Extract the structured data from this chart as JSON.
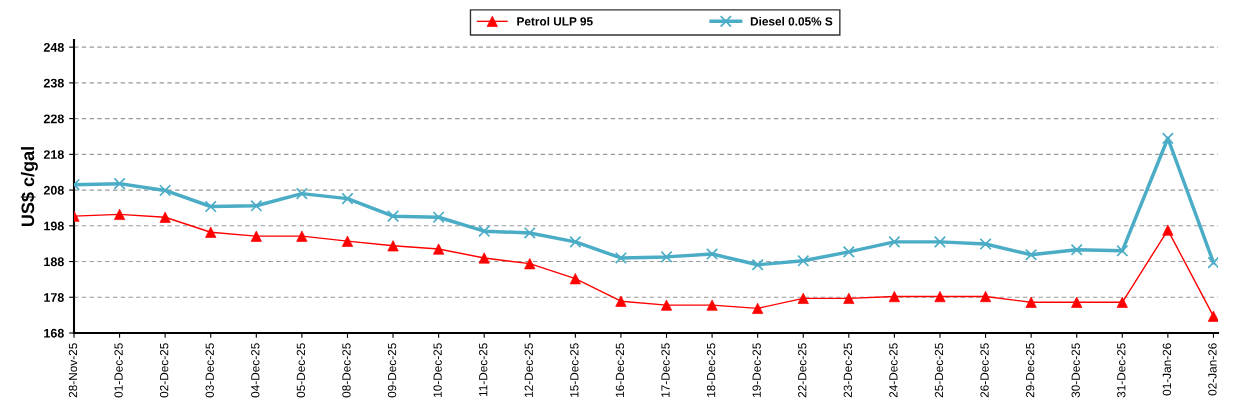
{
  "chart_data": {
    "type": "line",
    "ylabel": "US$ c/gal",
    "categories": [
      "28-Nov-25",
      "01-Dec-25",
      "02-Dec-25",
      "03-Dec-25",
      "04-Dec-25",
      "05-Dec-25",
      "08-Dec-25",
      "09-Dec-25",
      "10-Dec-25",
      "11-Dec-25",
      "12-Dec-25",
      "15-Dec-25",
      "16-Dec-25",
      "17-Dec-25",
      "18-Dec-25",
      "19-Dec-25",
      "22-Dec-25",
      "23-Dec-25",
      "24-Dec-25",
      "25-Dec-25",
      "26-Dec-25",
      "29-Dec-25",
      "30-Dec-25",
      "31-Dec-25",
      "01-Jan-26",
      "02-Jan-26"
    ],
    "series": [
      {
        "name": "Petrol ULP 95",
        "color": "#ff0000",
        "marker": "triangle",
        "values": [
          200.7,
          201.2,
          200.4,
          196.2,
          195.1,
          195.1,
          193.7,
          192.4,
          191.5,
          189.0,
          187.4,
          183.2,
          176.9,
          175.8,
          175.8,
          174.9,
          177.7,
          177.7,
          178.2,
          178.2,
          178.2,
          176.6,
          176.6,
          176.6,
          196.8,
          172.7
        ]
      },
      {
        "name": "Diesel 0.05% S",
        "color": "#4bacc6",
        "marker": "cross",
        "values": [
          209.5,
          209.8,
          207.9,
          203.4,
          203.6,
          207.0,
          205.6,
          200.7,
          200.4,
          196.5,
          196.0,
          193.5,
          189.0,
          189.3,
          190.1,
          187.1,
          188.2,
          190.7,
          193.5,
          193.5,
          192.9,
          189.9,
          191.3,
          191.0,
          222.5,
          187.7
        ]
      }
    ],
    "ylim": [
      168,
      250
    ],
    "yticks": [
      168,
      178,
      188,
      198,
      208,
      218,
      228,
      238,
      248
    ],
    "grid": "y",
    "legend": "top",
    "line_style": "solid"
  }
}
